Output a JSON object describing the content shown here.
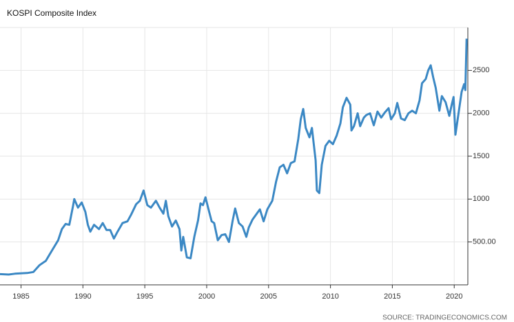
{
  "chart_data": {
    "type": "line",
    "title": "KOSPI Composite Index",
    "source": "SOURCE: TRADINGECONOMICS.COM",
    "color": "#3b88c4",
    "grid": true,
    "x": [
      1983.3,
      1984,
      1984.5,
      1985,
      1985.5,
      1986,
      1986.5,
      1987,
      1987.5,
      1988,
      1988.3,
      1988.6,
      1988.9,
      1989.2,
      1989.3,
      1989.6,
      1989.9,
      1990.2,
      1990.4,
      1990.6,
      1990.9,
      1991.3,
      1991.6,
      1991.9,
      1992.2,
      1992.5,
      1992.8,
      1993.2,
      1993.6,
      1993.9,
      1994.3,
      1994.6,
      1994.9,
      1995.2,
      1995.5,
      1995.9,
      1996.2,
      1996.5,
      1996.7,
      1996.9,
      1997.2,
      1997.5,
      1997.8,
      1997.95,
      1998.1,
      1998.4,
      1998.7,
      1999.0,
      1999.3,
      1999.5,
      1999.7,
      1999.9,
      2000.2,
      2000.4,
      2000.6,
      2000.9,
      2001.2,
      2001.5,
      2001.8,
      2002.1,
      2002.3,
      2002.6,
      2002.9,
      2003.2,
      2003.4,
      2003.7,
      2004.0,
      2004.3,
      2004.6,
      2004.9,
      2005.3,
      2005.6,
      2005.9,
      2006.2,
      2006.5,
      2006.8,
      2007.1,
      2007.4,
      2007.6,
      2007.8,
      2008.0,
      2008.3,
      2008.5,
      2008.8,
      2008.9,
      2009.1,
      2009.3,
      2009.6,
      2009.9,
      2010.2,
      2010.5,
      2010.8,
      2011.0,
      2011.3,
      2011.6,
      2011.7,
      2011.9,
      2012.2,
      2012.4,
      2012.7,
      2012.9,
      2013.2,
      2013.5,
      2013.8,
      2014.1,
      2014.4,
      2014.7,
      2014.9,
      2015.2,
      2015.4,
      2015.7,
      2016.0,
      2016.3,
      2016.6,
      2016.9,
      2017.2,
      2017.4,
      2017.7,
      2017.9,
      2018.1,
      2018.3,
      2018.5,
      2018.8,
      2019.0,
      2019.3,
      2019.6,
      2019.8,
      2019.95,
      2020.1,
      2020.3,
      2020.6,
      2020.8,
      2020.9,
      2021.0
    ],
    "values": [
      125,
      120,
      130,
      135,
      138,
      150,
      230,
      280,
      400,
      520,
      650,
      710,
      700,
      920,
      1000,
      900,
      960,
      850,
      700,
      620,
      700,
      650,
      720,
      640,
      640,
      540,
      620,
      720,
      740,
      820,
      940,
      980,
      1100,
      930,
      900,
      980,
      900,
      830,
      980,
      800,
      680,
      750,
      650,
      400,
      560,
      320,
      310,
      560,
      750,
      950,
      930,
      1020,
      850,
      740,
      720,
      520,
      580,
      590,
      500,
      750,
      890,
      720,
      680,
      560,
      670,
      760,
      820,
      880,
      740,
      880,
      980,
      1200,
      1370,
      1400,
      1300,
      1420,
      1440,
      1700,
      1930,
      2050,
      1830,
      1720,
      1830,
      1450,
      1100,
      1070,
      1400,
      1620,
      1680,
      1640,
      1740,
      1880,
      2070,
      2180,
      2100,
      1800,
      1850,
      2000,
      1850,
      1950,
      1980,
      2000,
      1860,
      2020,
      1950,
      2010,
      2060,
      1930,
      2000,
      2120,
      1940,
      1920,
      2000,
      2030,
      2000,
      2150,
      2350,
      2400,
      2500,
      2560,
      2420,
      2300,
      2030,
      2200,
      2130,
      1970,
      2100,
      2190,
      1750,
      1950,
      2250,
      2340,
      2270,
      2870
    ],
    "xlim": [
      1983.3,
      2021.1
    ],
    "xticks": [
      1985,
      1990,
      1995,
      2000,
      2005,
      2010,
      2015,
      2020
    ],
    "ylim": [
      0,
      3000
    ],
    "yticks": [
      {
        "value": 500,
        "label": "500.00"
      },
      1000,
      1500,
      2000,
      2500
    ]
  }
}
